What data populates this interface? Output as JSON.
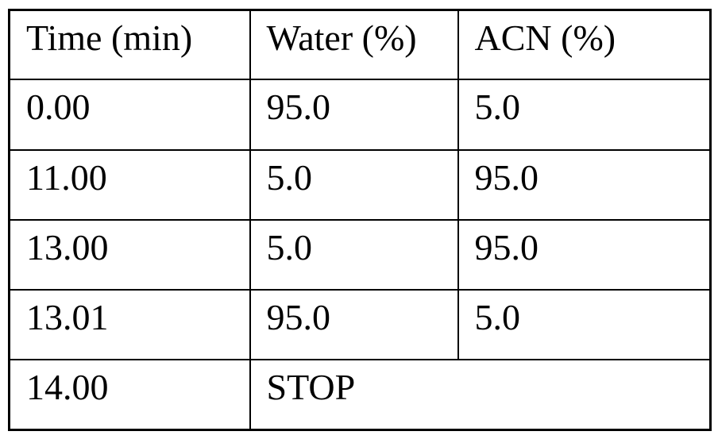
{
  "page": {
    "background_color": "#ffffff",
    "border_color": "#000000",
    "text_color": "#000000"
  },
  "gradient_table": {
    "columns": [
      "Time (min)",
      "Water (%)",
      "ACN (%)"
    ],
    "rows": [
      [
        "0.00",
        "95.0",
        "5.0"
      ],
      [
        "11.00",
        "5.0",
        "95.0"
      ],
      [
        "13.00",
        "5.0",
        "95.0"
      ],
      [
        "13.01",
        "95.0",
        "5.0"
      ]
    ],
    "final_row": {
      "time": "14.00",
      "action": "STOP"
    }
  },
  "chart_data": {
    "type": "table",
    "title": "",
    "columns": [
      "Time (min)",
      "Water (%)",
      "ACN (%)"
    ],
    "rows": [
      [
        "0.00",
        "95.0",
        "5.0"
      ],
      [
        "11.00",
        "5.0",
        "95.0"
      ],
      [
        "13.00",
        "5.0",
        "95.0"
      ],
      [
        "13.01",
        "95.0",
        "5.0"
      ],
      [
        "14.00",
        "STOP",
        ""
      ]
    ]
  }
}
